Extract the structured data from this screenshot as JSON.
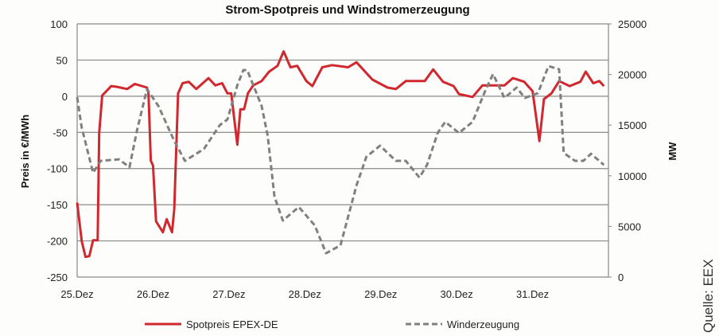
{
  "chart_data": {
    "type": "line",
    "title": "Strom-Spotpreis und Windstromerzeugung",
    "xlabel": "",
    "ylabel": "Preis in €/MWh",
    "y2label": "MW",
    "source": "Quelle: EEX",
    "x_unit": "days since 25.Dez 00:00",
    "xlim": [
      0,
      7
    ],
    "ylim": [
      -250,
      100
    ],
    "y2lim": [
      0,
      25000
    ],
    "x_ticks": [
      {
        "x": 0,
        "label": "25.Dez"
      },
      {
        "x": 1,
        "label": "26.Dez"
      },
      {
        "x": 2,
        "label": "27.Dez"
      },
      {
        "x": 3,
        "label": "28.Dez"
      },
      {
        "x": 4,
        "label": "29.Dez"
      },
      {
        "x": 5,
        "label": "30.Dez"
      },
      {
        "x": 6,
        "label": "31.Dez"
      }
    ],
    "y_ticks": [
      "100",
      "50",
      "0",
      "-50",
      "-100",
      "-150",
      "-200",
      "-250"
    ],
    "y_tick_values": [
      100,
      50,
      0,
      -50,
      -100,
      -150,
      -200,
      -250
    ],
    "y2_ticks": [
      "25000",
      "20000",
      "15000",
      "10000",
      "5000",
      "0"
    ],
    "y2_tick_values": [
      25000,
      20000,
      15000,
      10000,
      5000,
      0
    ],
    "grid": true,
    "legend_position": "bottom",
    "series": [
      {
        "name": "Spotpreis EPEX-DE",
        "axis": "left",
        "color": "#d0282e",
        "style": "solid",
        "points": [
          [
            0,
            -147
          ],
          [
            0.06,
            -200
          ],
          [
            0.11,
            -222
          ],
          [
            0.16,
            -221
          ],
          [
            0.21,
            -199
          ],
          [
            0.27,
            -199
          ],
          [
            0.29,
            -51
          ],
          [
            0.33,
            1
          ],
          [
            0.45,
            14
          ],
          [
            0.52,
            13
          ],
          [
            0.66,
            10
          ],
          [
            0.76,
            17
          ],
          [
            0.92,
            12
          ],
          [
            0.94,
            4
          ],
          [
            0.97,
            -89
          ],
          [
            1.0,
            -96
          ],
          [
            1.04,
            -173
          ],
          [
            1.13,
            -188
          ],
          [
            1.18,
            -170
          ],
          [
            1.25,
            -188
          ],
          [
            1.28,
            -156
          ],
          [
            1.33,
            4
          ],
          [
            1.39,
            18
          ],
          [
            1.47,
            20
          ],
          [
            1.57,
            10
          ],
          [
            1.73,
            25
          ],
          [
            1.82,
            15
          ],
          [
            1.91,
            18
          ],
          [
            1.98,
            4
          ],
          [
            2.03,
            4
          ],
          [
            2.11,
            -67
          ],
          [
            2.15,
            -18
          ],
          [
            2.2,
            -18
          ],
          [
            2.25,
            4
          ],
          [
            2.32,
            15
          ],
          [
            2.43,
            21
          ],
          [
            2.53,
            34
          ],
          [
            2.64,
            42
          ],
          [
            2.72,
            62
          ],
          [
            2.81,
            40
          ],
          [
            2.9,
            42
          ],
          [
            3.02,
            21
          ],
          [
            3.1,
            14
          ],
          [
            3.23,
            40
          ],
          [
            3.36,
            43
          ],
          [
            3.57,
            40
          ],
          [
            3.68,
            47
          ],
          [
            3.89,
            23
          ],
          [
            4.09,
            12
          ],
          [
            4.2,
            10
          ],
          [
            4.33,
            21
          ],
          [
            4.58,
            21
          ],
          [
            4.69,
            37
          ],
          [
            4.82,
            20
          ],
          [
            4.96,
            14
          ],
          [
            5.03,
            3
          ],
          [
            5.21,
            -1
          ],
          [
            5.34,
            15
          ],
          [
            5.63,
            15
          ],
          [
            5.74,
            25
          ],
          [
            5.89,
            20
          ],
          [
            6.0,
            7
          ],
          [
            6.09,
            -62
          ],
          [
            6.15,
            -4
          ],
          [
            6.25,
            4
          ],
          [
            6.35,
            21
          ],
          [
            6.49,
            14
          ],
          [
            6.63,
            20
          ],
          [
            6.7,
            34
          ],
          [
            6.8,
            18
          ],
          [
            6.88,
            21
          ],
          [
            6.94,
            14
          ]
        ]
      },
      {
        "name": "Winderzeugung",
        "axis": "right",
        "color": "#808080",
        "style": "dashed",
        "points": [
          [
            0,
            17760
          ],
          [
            0.06,
            14780
          ],
          [
            0.21,
            10300
          ],
          [
            0.31,
            11480
          ],
          [
            0.55,
            11630
          ],
          [
            0.69,
            10850
          ],
          [
            0.79,
            14540
          ],
          [
            0.92,
            18550
          ],
          [
            1.07,
            16900
          ],
          [
            1.28,
            13440
          ],
          [
            1.42,
            11480
          ],
          [
            1.67,
            12650
          ],
          [
            1.88,
            15010
          ],
          [
            1.98,
            15560
          ],
          [
            2.11,
            18940
          ],
          [
            2.19,
            20440
          ],
          [
            2.24,
            20440
          ],
          [
            2.43,
            16900
          ],
          [
            2.51,
            13990
          ],
          [
            2.6,
            7940
          ],
          [
            2.71,
            5580
          ],
          [
            2.92,
            6920
          ],
          [
            3.13,
            5110
          ],
          [
            3.28,
            2360
          ],
          [
            3.47,
            3140
          ],
          [
            3.68,
            9040
          ],
          [
            3.81,
            11870
          ],
          [
            3.99,
            12970
          ],
          [
            4.2,
            11480
          ],
          [
            4.33,
            11480
          ],
          [
            4.51,
            9830
          ],
          [
            4.61,
            11080
          ],
          [
            4.75,
            14230
          ],
          [
            4.85,
            15330
          ],
          [
            5.03,
            14230
          ],
          [
            5.21,
            15330
          ],
          [
            5.38,
            18470
          ],
          [
            5.48,
            20040
          ],
          [
            5.63,
            17690
          ],
          [
            5.79,
            18710
          ],
          [
            5.9,
            17690
          ],
          [
            6.07,
            18160
          ],
          [
            6.21,
            20830
          ],
          [
            6.35,
            20510
          ],
          [
            6.41,
            12260
          ],
          [
            6.56,
            11480
          ],
          [
            6.67,
            11480
          ],
          [
            6.77,
            12180
          ],
          [
            6.94,
            11080
          ]
        ]
      }
    ]
  }
}
